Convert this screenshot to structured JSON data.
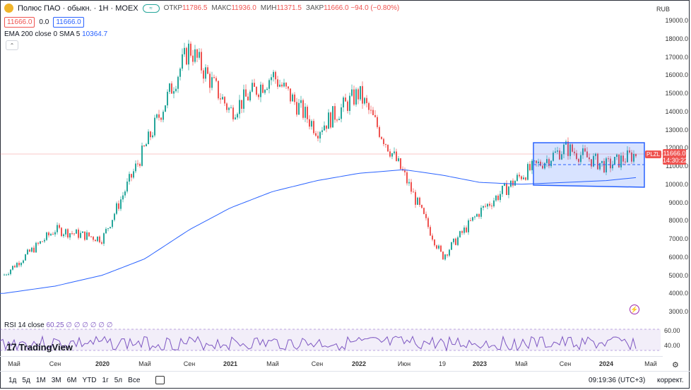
{
  "header": {
    "title": "Полюс ПАО · обыкн. · 1Н · MOEX",
    "ohlc": [
      {
        "k": "ОТКР",
        "v": "11786.5"
      },
      {
        "k": "МАКС",
        "v": "11936.0"
      },
      {
        "k": "МИН",
        "v": "11371.5"
      },
      {
        "k": "ЗАКР",
        "v": "11666.0 −94.0 (−0.80%)"
      }
    ],
    "bid": "11666.0",
    "spread": "0.0",
    "ask": "11666.0",
    "ema_label": "EMA 200 close 0 SMA 5",
    "ema_value": "10364.7",
    "currency": "RUB"
  },
  "price_axis": {
    "ticks": [
      "19000.0",
      "18000.0",
      "17000.0",
      "16000.0",
      "15000.0",
      "14000.0",
      "13000.0",
      "12000.0",
      "11000.0",
      "10000.0",
      "9000.0",
      "8000.0",
      "7000.0",
      "6000.0",
      "5000.0",
      "4000.0",
      "3000.0"
    ],
    "current_price": "11666.0",
    "countdown": "14:30:22",
    "ticker": "PLZL"
  },
  "rsi": {
    "label": "RSI 14 close",
    "values": "60.25 ∅ ∅ ∅ ∅ ∅ ∅",
    "ticks": [
      "60.00",
      "40.00"
    ]
  },
  "brand": "TradingView",
  "time_axis": [
    "Май",
    "Сен",
    "2020",
    "Май",
    "Сен",
    "2021",
    "Май",
    "Сен",
    "2022",
    "Июн",
    "19",
    "2023",
    "Май",
    "Сен",
    "2024",
    "Май"
  ],
  "ranges": [
    "1д",
    "5д",
    "1М",
    "3М",
    "6М",
    "YTD",
    "1г",
    "5л",
    "Все"
  ],
  "clock": "09:19:36 (UTC+3)",
  "adjust": "коррект.",
  "colors": {
    "up": "#26a69a",
    "down": "#ef5350",
    "ema": "#2962ff",
    "rsi": "#7e57c2",
    "channel": "#2962ff"
  },
  "chart_data": {
    "type": "line",
    "title": "Полюс ПАО · обыкн. · 1Н · MOEX",
    "ylim": [
      3000,
      19000
    ],
    "series": [
      {
        "name": "Close",
        "x": [
          "2019-05",
          "2019-09",
          "2020-01",
          "2020-05",
          "2020-09",
          "2021-01",
          "2021-05",
          "2021-09",
          "2022-01",
          "2022-06",
          "2022-09",
          "2023-01",
          "2023-05",
          "2023-09",
          "2024-01",
          "2024-03"
        ],
        "values": [
          5000,
          7500,
          7000,
          12000,
          17500,
          14000,
          16000,
          13000,
          15000,
          10500,
          6000,
          8500,
          10500,
          12000,
          11000,
          11666
        ]
      },
      {
        "name": "EMA 200",
        "x": [
          "2019-05",
          "2019-09",
          "2020-01",
          "2020-05",
          "2020-09",
          "2021-01",
          "2021-05",
          "2021-09",
          "2022-01",
          "2022-06",
          "2022-09",
          "2023-01",
          "2023-05",
          "2023-09",
          "2024-01",
          "2024-03"
        ],
        "values": [
          4000,
          4400,
          5000,
          5900,
          7500,
          8700,
          9600,
          10200,
          10600,
          10800,
          10500,
          10100,
          10000,
          10100,
          10200,
          10365
        ]
      }
    ]
  }
}
